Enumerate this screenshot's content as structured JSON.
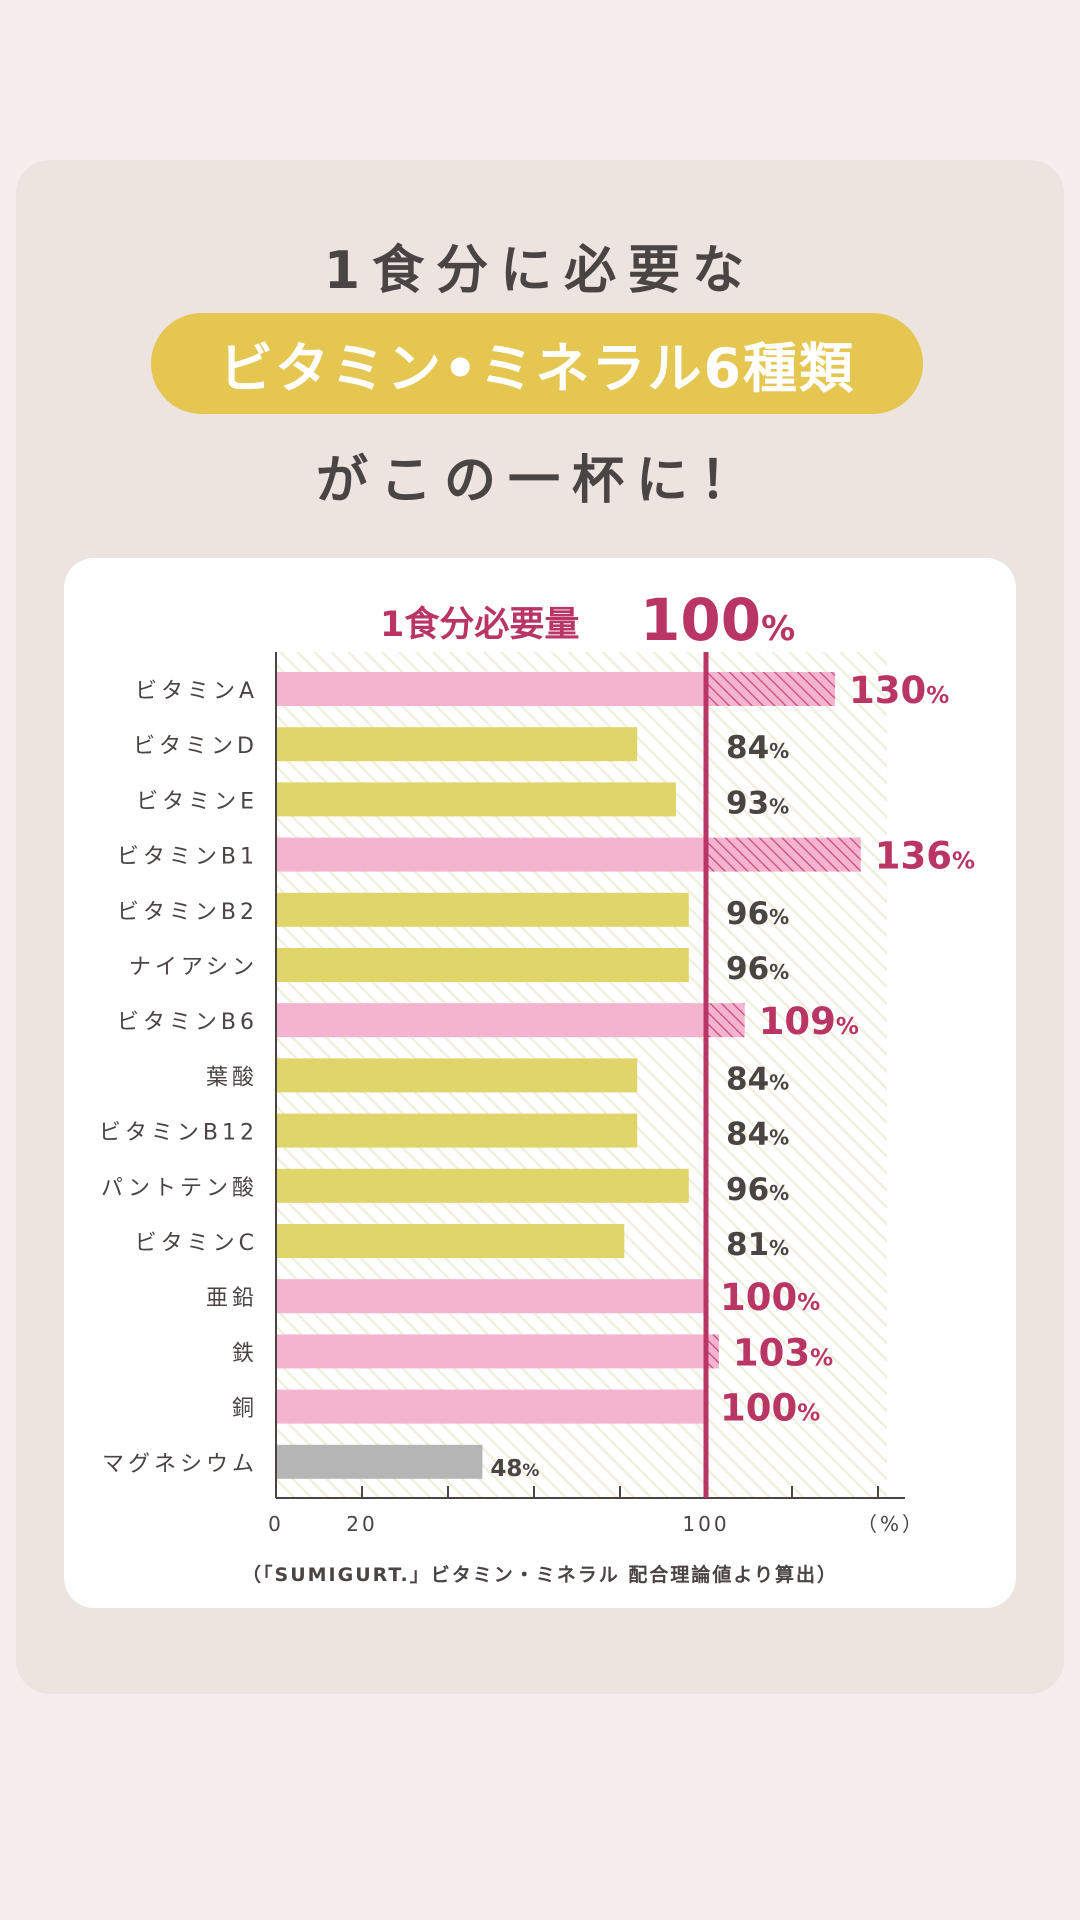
{
  "heading": {
    "line1": "1食分に必要な",
    "highlight": "ビタミン•ミネラル6種類",
    "line3": "がこの一杯に！"
  },
  "colors": {
    "background": "#f5eeec",
    "card": "#ede3df",
    "pill": "#e4c651",
    "pink_bar": "#f4b3cf",
    "yellow_bar": "#dfd56a",
    "gray_bar": "#b5b5b5",
    "accent": "#b83564",
    "text": "#4a4443"
  },
  "chart_data": {
    "type": "bar",
    "orientation": "horizontal",
    "reference": {
      "value": 100,
      "label": "1食分必要量",
      "value_text": "100",
      "unit": "%"
    },
    "categories": [
      "ビタミンA",
      "ビタミンD",
      "ビタミンE",
      "ビタミンB1",
      "ビタミンB2",
      "ナイアシン",
      "ビタミンB6",
      "葉酸",
      "ビタミンB12",
      "パントテン酸",
      "ビタミンC",
      "亜鉛",
      "鉄",
      "銅",
      "マグネシウム"
    ],
    "values": [
      130,
      84,
      93,
      136,
      96,
      96,
      109,
      84,
      84,
      96,
      81,
      100,
      103,
      100,
      48
    ],
    "groups": [
      "pink",
      "yellow",
      "yellow",
      "pink",
      "yellow",
      "yellow",
      "pink",
      "yellow",
      "yellow",
      "yellow",
      "yellow",
      "pink",
      "pink",
      "pink",
      "gray"
    ],
    "value_labels": [
      "130",
      "84",
      "93",
      "136",
      "96",
      "96",
      "109",
      "84",
      "84",
      "96",
      "81",
      "100",
      "103",
      "100",
      "48"
    ],
    "value_unit": "%",
    "xlim": [
      0,
      150
    ],
    "xticks": [
      0,
      20,
      40,
      60,
      80,
      100,
      120,
      140
    ],
    "xtick_labels": [
      "0",
      "20",
      "",
      "",
      "",
      "100",
      "",
      ""
    ],
    "xlabel": "（%）",
    "footnote": "（「SUMIGURT.」ビタミン・ミネラル 配合理論値より算出）"
  }
}
